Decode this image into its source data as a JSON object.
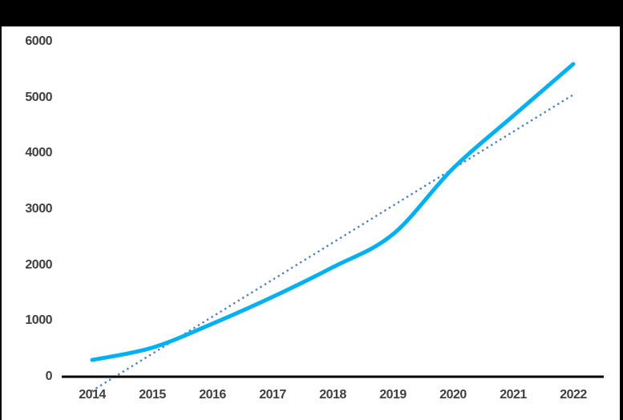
{
  "canvas": {
    "background_color": "#000000",
    "plot_background_color": "#ffffff"
  },
  "chart_data": {
    "type": "line",
    "title": "",
    "categories": [
      "2014",
      "2015",
      "2016",
      "2017",
      "2018",
      "2019",
      "2020",
      "2021",
      "2022"
    ],
    "series": [
      {
        "name": "main-series",
        "values": [
          300,
          520,
          950,
          1430,
          1960,
          2550,
          3730,
          4670,
          5600
        ],
        "color": "#00b0f0",
        "style": "solid",
        "smooth": true,
        "stroke_width": 5
      }
    ],
    "trendline": {
      "name": "linear-trendline",
      "start_value": -250,
      "end_value": 5050,
      "color": "#4e82c4",
      "style": "dotted",
      "stroke_width": 2.6
    },
    "y_axis": {
      "min": 0,
      "max": 6000,
      "step": 1000,
      "tick_labels": [
        "0",
        "1000",
        "2000",
        "3000",
        "4000",
        "5000",
        "6000"
      ]
    },
    "x_axis": {
      "tick_labels": [
        "2014",
        "2015",
        "2016",
        "2017",
        "2018",
        "2019",
        "2020",
        "2021",
        "2022"
      ],
      "axis_line_color": "#000000",
      "axis_line_width": 3
    },
    "label_color": "#3f3f3f",
    "grid": false,
    "legend": false,
    "xlabel": "",
    "ylabel": ""
  }
}
